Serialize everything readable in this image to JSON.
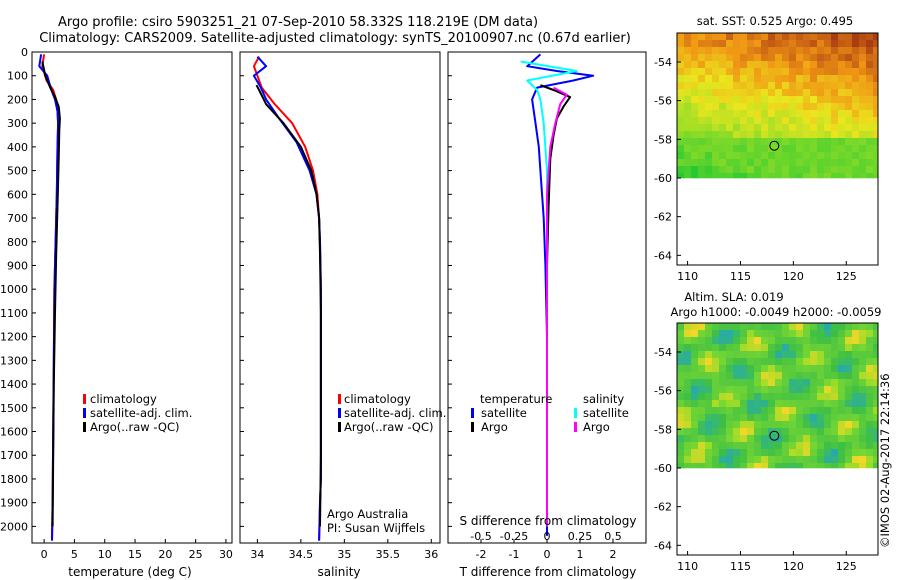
{
  "title": {
    "line1": "Argo profile: csiro 5903251_21 07-Sep-2010 58.332S 118.219E (DM data)",
    "line2": "Climatology: CARS2009. Satellite-adjusted climatology: synTS_20100907.nc (0.67d earlier)"
  },
  "colors": {
    "climatology": "#ff0000",
    "satellite": "#0000ff",
    "argo": "#000000",
    "sal_satellite": "#00ffff",
    "sal_argo": "#ff00ff"
  },
  "chart_data": [
    {
      "type": "line",
      "name": "temperature",
      "xlabel": "temperature (deg C)",
      "ylabel": "depth",
      "xlim": [
        -2,
        31
      ],
      "ylim": [
        2070,
        0
      ],
      "xticks": [
        "0",
        "5",
        "10",
        "15",
        "20",
        "25",
        "30"
      ],
      "xtick_values": [
        0,
        5,
        10,
        15,
        20,
        25,
        30
      ],
      "yticks": [
        "0",
        "100",
        "200",
        "300",
        "400",
        "500",
        "600",
        "700",
        "800",
        "900",
        "1000",
        "1100",
        "1200",
        "1300",
        "1400",
        "1500",
        "1600",
        "1700",
        "1800",
        "1900",
        "2000"
      ],
      "ytick_values": [
        0,
        100,
        200,
        300,
        400,
        500,
        600,
        700,
        800,
        900,
        1000,
        1100,
        1200,
        1300,
        1400,
        1500,
        1600,
        1700,
        1800,
        1900,
        2000
      ],
      "legend": [
        "climatology",
        "satellite-adj. clim.",
        "Argo(..raw -QC)"
      ],
      "series": [
        {
          "name": "climatology",
          "color": "#ff0000",
          "x": [
            0.0,
            -0.3,
            0.4,
            1.5,
            2.0,
            2.2,
            2.3,
            2.2,
            2.1,
            1.9,
            1.7,
            1.6,
            1.5,
            1.4,
            1.3
          ],
          "y": [
            10,
            60,
            120,
            160,
            200,
            250,
            300,
            400,
            600,
            800,
            1000,
            1300,
            1600,
            1900,
            2060
          ]
        },
        {
          "name": "satellite-adj. clim.",
          "color": "#0000ff",
          "x": [
            -0.5,
            -0.8,
            0.5,
            1.2,
            1.8,
            2.2,
            2.3,
            2.2,
            2.1,
            1.9,
            1.7,
            1.6,
            1.5,
            1.4,
            1.3
          ],
          "y": [
            10,
            60,
            100,
            160,
            200,
            250,
            300,
            400,
            600,
            800,
            1000,
            1300,
            1600,
            1900,
            2060
          ]
        },
        {
          "name": "Argo(..raw -QC)",
          "color": "#000000",
          "x": [
            -0.3,
            0.2,
            1.0,
            1.8,
            2.4,
            2.6,
            2.5,
            2.4,
            2.2,
            2.0,
            1.8,
            1.6,
            1.5,
            1.4
          ],
          "y": [
            40,
            100,
            150,
            190,
            230,
            280,
            330,
            450,
            650,
            850,
            1100,
            1400,
            1700,
            2000
          ]
        }
      ]
    },
    {
      "type": "line",
      "name": "salinity",
      "xlabel": "salinity",
      "xlim": [
        33.8,
        36.1
      ],
      "ylim": [
        2070,
        0
      ],
      "xticks": [
        "34",
        "34.5",
        "35",
        "35.5",
        "36"
      ],
      "xtick_values": [
        34,
        34.5,
        35,
        35.5,
        36
      ],
      "legend": [
        "climatology",
        "satellite-adj. clim.",
        "Argo(..raw -QC)"
      ],
      "annotation": [
        "Argo Australia",
        "PI: Susan Wijffels"
      ],
      "series": [
        {
          "name": "climatology",
          "color": "#ff0000",
          "x": [
            34.02,
            33.96,
            34.0,
            34.05,
            34.2,
            34.4,
            34.55,
            34.64,
            34.69,
            34.71,
            34.72,
            34.73,
            34.73,
            34.73,
            34.73,
            34.72,
            34.71
          ],
          "y": [
            20,
            60,
            100,
            150,
            220,
            300,
            400,
            500,
            600,
            700,
            800,
            1000,
            1200,
            1500,
            1800,
            1900,
            2060
          ]
        },
        {
          "name": "satellite-adj. clim.",
          "color": "#0000ff",
          "x": [
            34.0,
            34.1,
            33.96,
            34.04,
            34.1,
            34.25,
            34.45,
            34.6,
            34.68,
            34.71,
            34.72,
            34.73,
            34.73,
            34.73,
            34.73,
            34.72,
            34.71
          ],
          "y": [
            20,
            60,
            100,
            150,
            200,
            280,
            380,
            500,
            600,
            700,
            800,
            1000,
            1200,
            1500,
            1800,
            1900,
            2060
          ]
        },
        {
          "name": "Argo(..raw -QC)",
          "color": "#000000",
          "x": [
            33.99,
            34.02,
            34.1,
            34.3,
            34.5,
            34.62,
            34.68,
            34.71,
            34.72,
            34.73,
            34.73,
            34.73,
            34.72
          ],
          "y": [
            140,
            160,
            220,
            300,
            400,
            500,
            600,
            700,
            850,
            1100,
            1400,
            1700,
            2000
          ]
        }
      ]
    },
    {
      "type": "line",
      "name": "difference",
      "xlabel": "T difference from climatology",
      "xlabel_top": "S difference from climatology",
      "xlim": [
        -3,
        3
      ],
      "ylim": [
        2070,
        0
      ],
      "xticks": [
        "-2",
        "-1",
        "0",
        "1",
        "2"
      ],
      "xtick_values": [
        -2,
        -1,
        0,
        1,
        2
      ],
      "sticks": [
        "-0.5",
        "-0.25",
        "0",
        "0.25",
        "0.5"
      ],
      "stick_values": [
        -0.5,
        -0.25,
        0,
        0.25,
        0.5
      ],
      "legend_temperature": {
        "heading": "temperature",
        "items": [
          "satellite",
          "Argo"
        ]
      },
      "legend_salinity": {
        "heading": "salinity",
        "items": [
          "satellite",
          "Argo"
        ]
      },
      "series": [
        {
          "name": "T satellite",
          "color": "#0000ff",
          "x": [
            -0.2,
            -0.6,
            0.3,
            1.4,
            0.8,
            -0.3,
            -0.45,
            -0.35,
            -0.25,
            -0.2,
            -0.1,
            -0.05,
            0.0,
            0.0,
            0.0
          ],
          "y": [
            10,
            60,
            80,
            100,
            120,
            150,
            200,
            300,
            400,
            500,
            700,
            900,
            1200,
            1600,
            2040
          ]
        },
        {
          "name": "T Argo",
          "color": "#000000",
          "x": [
            -0.2,
            0.2,
            0.7,
            0.5,
            0.3,
            0.2,
            0.1,
            0.05,
            0.0,
            0.0
          ],
          "y": [
            140,
            160,
            190,
            230,
            280,
            350,
            450,
            650,
            900,
            2000
          ]
        },
        {
          "name": "S satellite",
          "color": "#00ffff",
          "x": [
            -0.8,
            0.9,
            -0.6,
            -0.3,
            -0.2,
            -0.1,
            0.0,
            0.0,
            0.0
          ],
          "y": [
            40,
            80,
            120,
            160,
            200,
            300,
            500,
            1000,
            2000
          ]
        },
        {
          "name": "S Argo",
          "color": "#ff00ff",
          "x": [
            0.2,
            0.6,
            0.4,
            0.25,
            0.1,
            0.0,
            0.0
          ],
          "y": [
            150,
            180,
            220,
            300,
            400,
            600,
            2000
          ]
        }
      ]
    },
    {
      "type": "heatmap",
      "name": "sst-map",
      "title": "sat. SST: 0.525 Argo: 0.495",
      "xlim": [
        109,
        128
      ],
      "ylim": [
        -64.5,
        -52.5
      ],
      "xticks": [
        "110",
        "115",
        "120",
        "125"
      ],
      "xtick_values": [
        110,
        115,
        120,
        125
      ],
      "yticks": [
        "-54",
        "-56",
        "-58",
        "-60",
        "-62",
        "-64"
      ],
      "ytick_values": [
        -54,
        -56,
        -58,
        -60,
        -62,
        -64
      ],
      "data_lat_min": -60,
      "marker": {
        "lon": 118.2,
        "lat": -58.33
      }
    },
    {
      "type": "heatmap",
      "name": "sla-map",
      "title": "Altim. SLA: 0.019",
      "subtitle": "Argo h1000: -0.0049 h2000: -0.0059",
      "xlim": [
        109,
        128
      ],
      "ylim": [
        -64.5,
        -52.5
      ],
      "xticks": [
        "110",
        "115",
        "120",
        "125"
      ],
      "xtick_values": [
        110,
        115,
        120,
        125
      ],
      "yticks": [
        "-54",
        "-56",
        "-58",
        "-60",
        "-62",
        "-64"
      ],
      "ytick_values": [
        -54,
        -56,
        -58,
        -60,
        -62,
        -64
      ],
      "data_lat_min": -60,
      "marker": {
        "lon": 118.2,
        "lat": -58.33
      }
    }
  ],
  "credit": "©IMOS 02-Aug-2017 22:14:36"
}
